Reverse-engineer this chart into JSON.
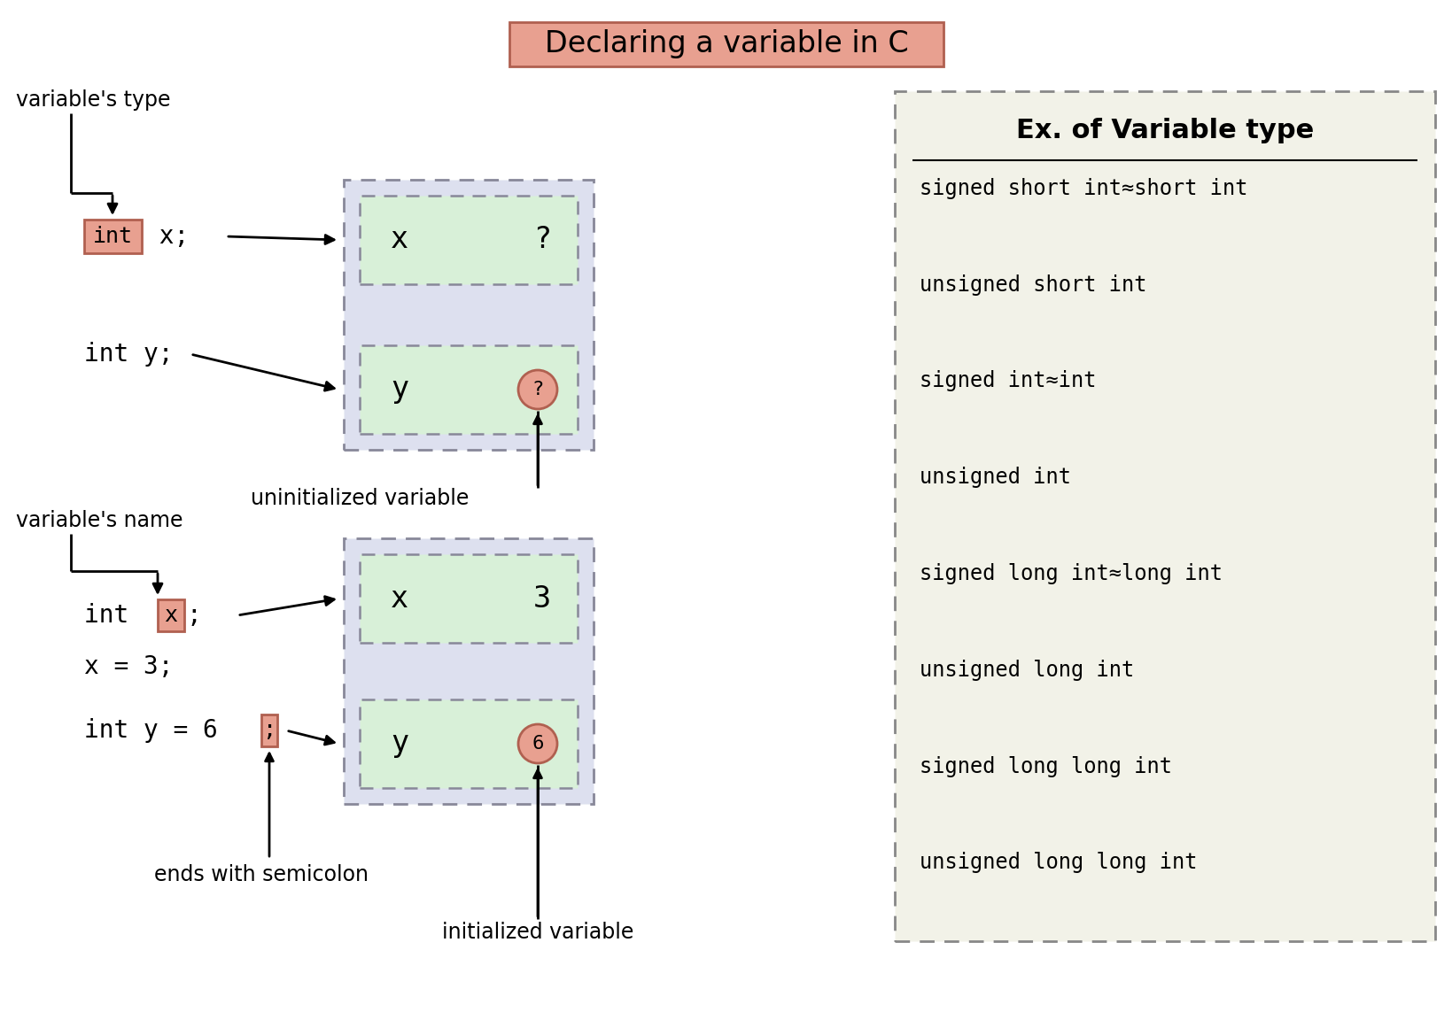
{
  "title": "Declaring a variable in C",
  "title_bg": "#e8a090",
  "title_border": "#b06050",
  "bg_color": "#ffffff",
  "var_type_label": "variable's type",
  "var_name_label": "variable's name",
  "uninit_label": "uninitialized variable",
  "init_label": "initialized variable",
  "semicolon_label": "ends with semicolon",
  "int_box_color": "#e8a090",
  "int_box_border": "#b06050",
  "mem_outer_bg": "#dde0ef",
  "mem_inner_bg": "#d8f0d8",
  "mem_border": "#888899",
  "right_panel_bg": "#f2f2e8",
  "right_panel_border": "#888888",
  "right_panel_title": "Ex. of Variable type",
  "right_panel_items": [
    "signed short int≈short int",
    "unsigned short int",
    "signed int≈int",
    "unsigned int",
    "signed long int≈long int",
    "unsigned long int",
    "signed long long int",
    "unsigned long long int"
  ],
  "arrow_color": "#000000",
  "text_color": "#000000",
  "circle_color": "#e8a090",
  "circle_border": "#b06050"
}
